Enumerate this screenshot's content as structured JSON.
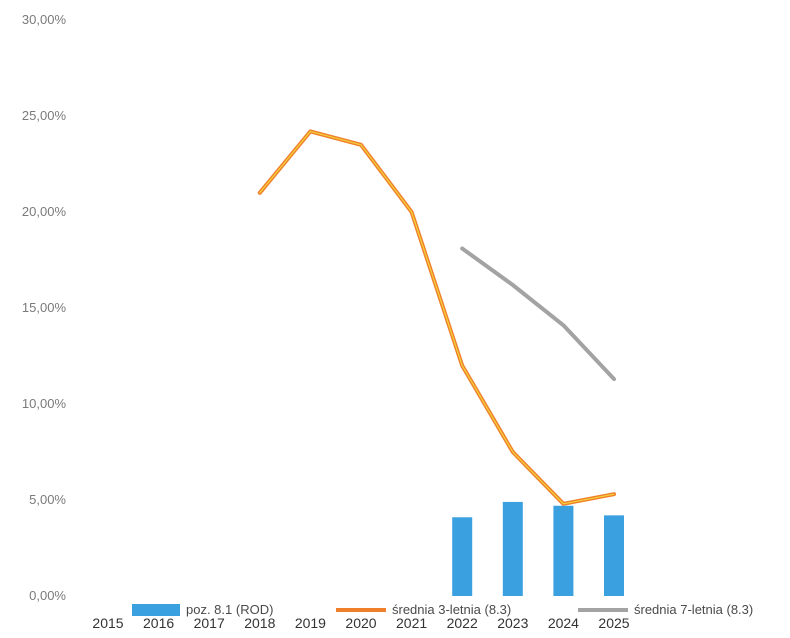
{
  "chart_data": {
    "type": "bar",
    "categories": [
      "2015",
      "2016",
      "2017",
      "2018",
      "2019",
      "2020",
      "2021",
      "2022",
      "2023",
      "2024",
      "2025"
    ],
    "y_ticks": [
      "0,00%",
      "5,00%",
      "10,00%",
      "15,00%",
      "20,00%",
      "25,00%",
      "30,00%"
    ],
    "ylim": [
      0,
      30
    ],
    "grid": false,
    "legend_position": "bottom",
    "series": [
      {
        "name": "poz. 8.1 (ROD)",
        "kind": "bar",
        "color": "#3aa0e0",
        "values": [
          null,
          null,
          null,
          null,
          null,
          null,
          null,
          4.1,
          4.9,
          4.7,
          4.2
        ]
      },
      {
        "name": "średnia 3-letnia (8.3)",
        "kind": "line",
        "color": "#f07f2a",
        "highlight": "#f2d33c",
        "values": [
          null,
          null,
          null,
          21.0,
          24.2,
          23.5,
          20.0,
          12.0,
          7.5,
          4.8,
          5.3
        ]
      },
      {
        "name": "średnia 7-letnia (8.3)",
        "kind": "line",
        "color": "#a3a3a3",
        "values": [
          null,
          null,
          null,
          null,
          null,
          null,
          null,
          18.1,
          16.2,
          14.1,
          11.3
        ]
      }
    ]
  }
}
